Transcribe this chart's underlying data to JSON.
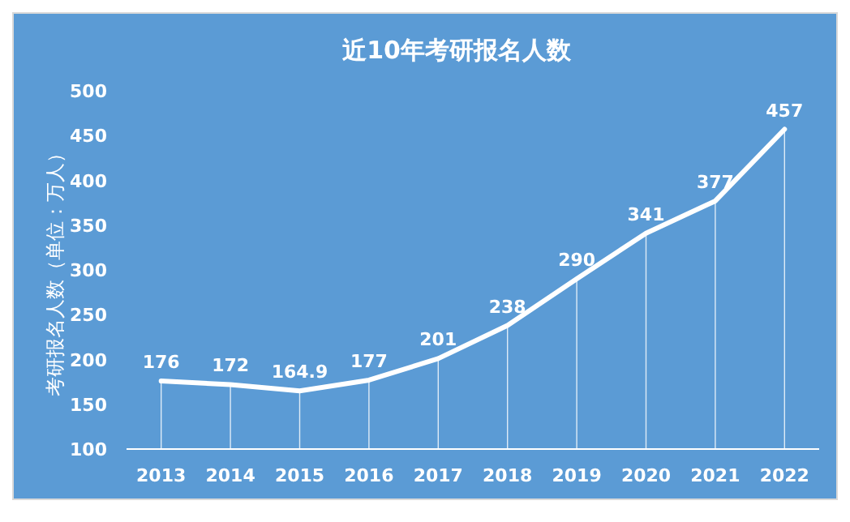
{
  "chart_data": {
    "type": "line",
    "title": "近10年考研报名人数",
    "ylabel": "考研报名人数（单位：万人）",
    "categories": [
      "2013",
      "2014",
      "2015",
      "2016",
      "2017",
      "2018",
      "2019",
      "2020",
      "2021",
      "2022"
    ],
    "series": [
      {
        "color": "#ffffff",
        "values": [
          176,
          172,
          164.9,
          177,
          201,
          238,
          290,
          341,
          377,
          457
        ]
      }
    ],
    "ylim": [
      100,
      500
    ],
    "yticks": [
      100,
      150,
      200,
      250,
      300,
      350,
      400,
      450,
      500
    ],
    "data_labels": true,
    "grid": "x",
    "marker": "none",
    "line_style": "solid"
  }
}
